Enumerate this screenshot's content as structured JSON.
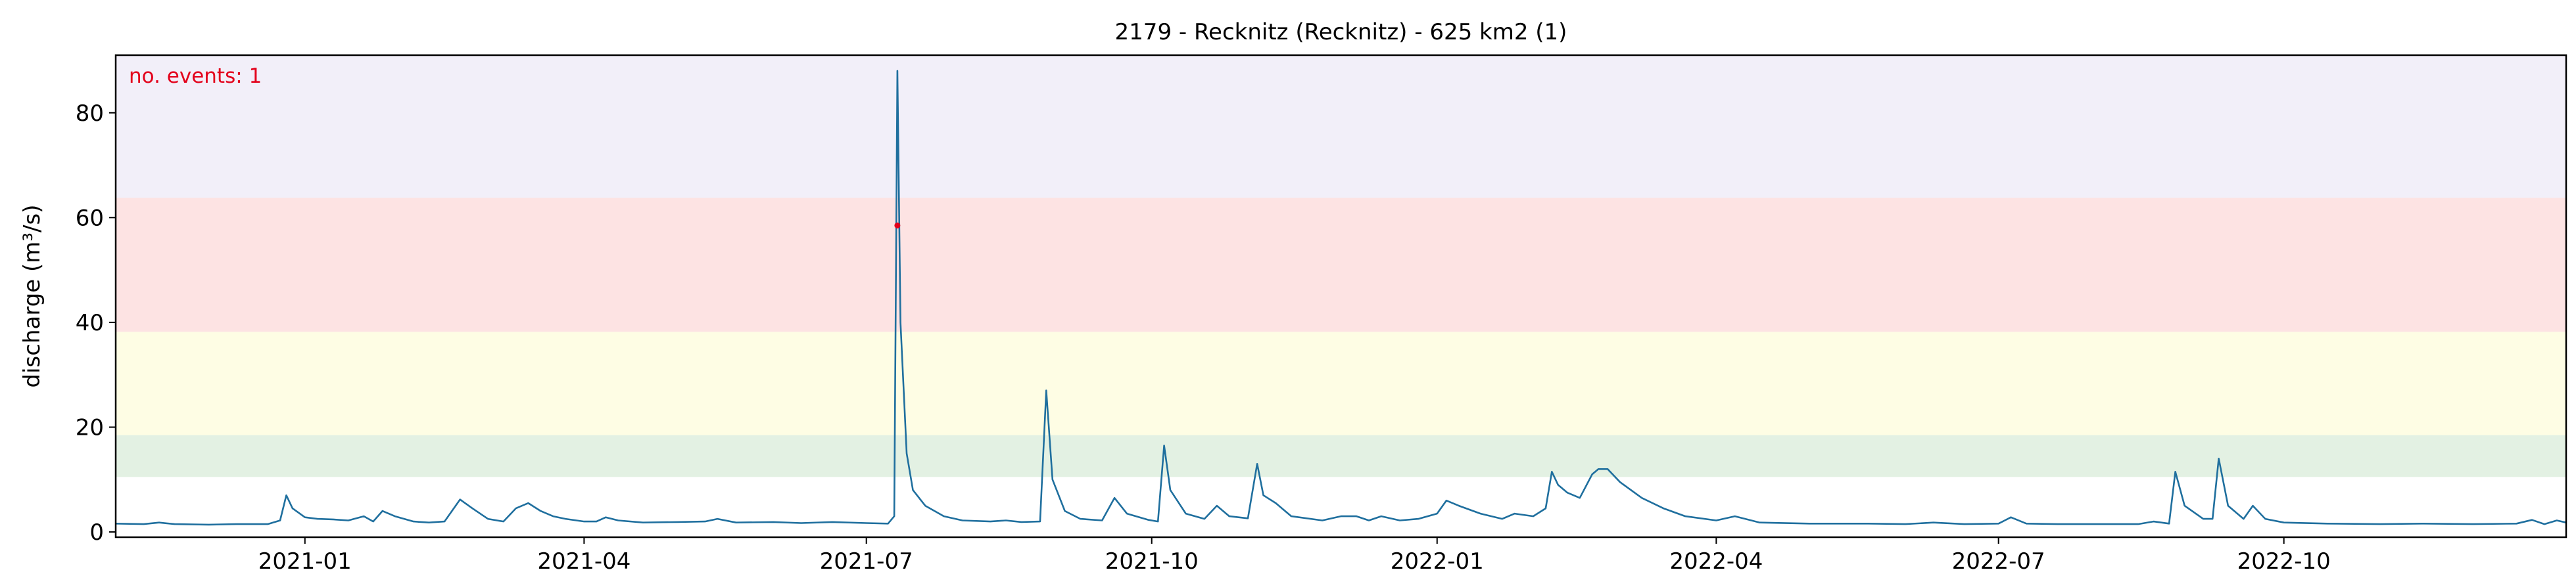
{
  "chart_data": {
    "type": "line",
    "title": "2179 - Recknitz (Recknitz) - 625 km2 (1)",
    "ylabel": "discharge (m³/s)",
    "xlabel": "",
    "xlim": [
      "2020-11-01",
      "2022-12-31"
    ],
    "ylim": [
      -1,
      91
    ],
    "yticks": [
      0,
      20,
      40,
      60,
      80
    ],
    "xticks": [
      "2021-01",
      "2021-04",
      "2021-07",
      "2021-10",
      "2022-01",
      "2022-04",
      "2022-07",
      "2022-10"
    ],
    "grid": false,
    "annotation": {
      "text": "no. events: 1",
      "color": "#e3001b"
    },
    "bands": [
      {
        "from": 10.5,
        "to": 18.5,
        "color": "#e3f1e3"
      },
      {
        "from": 18.5,
        "to": 38.2,
        "color": "#fefde4"
      },
      {
        "from": 38.2,
        "to": 63.8,
        "color": "#fde3e3"
      },
      {
        "from": 63.8,
        "to": 91,
        "color": "#f2eff9"
      }
    ],
    "series": [
      {
        "color": "#1f6f9e",
        "points": [
          [
            "2020-11-01",
            1.6
          ],
          [
            "2020-11-10",
            1.5
          ],
          [
            "2020-11-15",
            1.8
          ],
          [
            "2020-11-20",
            1.5
          ],
          [
            "2020-12-01",
            1.4
          ],
          [
            "2020-12-10",
            1.5
          ],
          [
            "2020-12-20",
            1.5
          ],
          [
            "2020-12-24",
            2.2
          ],
          [
            "2020-12-26",
            7.0
          ],
          [
            "2020-12-28",
            4.5
          ],
          [
            "2021-01-01",
            2.8
          ],
          [
            "2021-01-05",
            2.5
          ],
          [
            "2021-01-10",
            2.4
          ],
          [
            "2021-01-15",
            2.2
          ],
          [
            "2021-01-20",
            3.0
          ],
          [
            "2021-01-23",
            2.0
          ],
          [
            "2021-01-26",
            4.0
          ],
          [
            "2021-01-30",
            3.0
          ],
          [
            "2021-02-05",
            2.0
          ],
          [
            "2021-02-10",
            1.8
          ],
          [
            "2021-02-15",
            2.0
          ],
          [
            "2021-02-20",
            6.2
          ],
          [
            "2021-02-24",
            4.5
          ],
          [
            "2021-03-01",
            2.5
          ],
          [
            "2021-03-06",
            2.0
          ],
          [
            "2021-03-10",
            4.5
          ],
          [
            "2021-03-14",
            5.5
          ],
          [
            "2021-03-18",
            4.0
          ],
          [
            "2021-03-22",
            3.0
          ],
          [
            "2021-03-26",
            2.5
          ],
          [
            "2021-04-01",
            2.0
          ],
          [
            "2021-04-05",
            2.0
          ],
          [
            "2021-04-08",
            2.8
          ],
          [
            "2021-04-12",
            2.2
          ],
          [
            "2021-04-20",
            1.8
          ],
          [
            "2021-05-01",
            1.9
          ],
          [
            "2021-05-10",
            2.0
          ],
          [
            "2021-05-14",
            2.5
          ],
          [
            "2021-05-20",
            1.8
          ],
          [
            "2021-06-01",
            1.9
          ],
          [
            "2021-06-10",
            1.7
          ],
          [
            "2021-06-20",
            1.9
          ],
          [
            "2021-07-01",
            1.7
          ],
          [
            "2021-07-08",
            1.6
          ],
          [
            "2021-07-10",
            3.0
          ],
          [
            "2021-07-11",
            88.0
          ],
          [
            "2021-07-12",
            40.0
          ],
          [
            "2021-07-14",
            15.0
          ],
          [
            "2021-07-16",
            8.0
          ],
          [
            "2021-07-20",
            5.0
          ],
          [
            "2021-07-26",
            3.0
          ],
          [
            "2021-08-01",
            2.2
          ],
          [
            "2021-08-10",
            2.0
          ],
          [
            "2021-08-15",
            2.2
          ],
          [
            "2021-08-20",
            1.9
          ],
          [
            "2021-08-26",
            2.0
          ],
          [
            "2021-08-28",
            27.0
          ],
          [
            "2021-08-30",
            10.0
          ],
          [
            "2021-09-03",
            4.0
          ],
          [
            "2021-09-08",
            2.5
          ],
          [
            "2021-09-15",
            2.2
          ],
          [
            "2021-09-19",
            6.5
          ],
          [
            "2021-09-23",
            3.5
          ],
          [
            "2021-09-30",
            2.3
          ],
          [
            "2021-10-03",
            2.0
          ],
          [
            "2021-10-05",
            16.5
          ],
          [
            "2021-10-07",
            8.0
          ],
          [
            "2021-10-12",
            3.5
          ],
          [
            "2021-10-18",
            2.5
          ],
          [
            "2021-10-22",
            5.0
          ],
          [
            "2021-10-26",
            3.0
          ],
          [
            "2021-11-01",
            2.6
          ],
          [
            "2021-11-04",
            13.0
          ],
          [
            "2021-11-06",
            7.0
          ],
          [
            "2021-11-10",
            5.5
          ],
          [
            "2021-11-15",
            3.0
          ],
          [
            "2021-11-25",
            2.2
          ],
          [
            "2021-12-01",
            3.0
          ],
          [
            "2021-12-06",
            3.0
          ],
          [
            "2021-12-10",
            2.2
          ],
          [
            "2021-12-14",
            3.0
          ],
          [
            "2021-12-20",
            2.2
          ],
          [
            "2021-12-26",
            2.5
          ],
          [
            "2022-01-01",
            3.5
          ],
          [
            "2022-01-04",
            6.0
          ],
          [
            "2022-01-08",
            5.0
          ],
          [
            "2022-01-15",
            3.5
          ],
          [
            "2022-01-22",
            2.5
          ],
          [
            "2022-01-26",
            3.5
          ],
          [
            "2022-02-01",
            3.0
          ],
          [
            "2022-02-05",
            4.5
          ],
          [
            "2022-02-07",
            11.5
          ],
          [
            "2022-02-09",
            9.0
          ],
          [
            "2022-02-12",
            7.5
          ],
          [
            "2022-02-16",
            6.5
          ],
          [
            "2022-02-20",
            11.0
          ],
          [
            "2022-02-22",
            12.0
          ],
          [
            "2022-02-25",
            12.0
          ],
          [
            "2022-03-01",
            9.5
          ],
          [
            "2022-03-08",
            6.5
          ],
          [
            "2022-03-15",
            4.5
          ],
          [
            "2022-03-22",
            3.0
          ],
          [
            "2022-04-01",
            2.2
          ],
          [
            "2022-04-07",
            3.0
          ],
          [
            "2022-04-15",
            1.8
          ],
          [
            "2022-05-01",
            1.6
          ],
          [
            "2022-05-20",
            1.6
          ],
          [
            "2022-06-01",
            1.5
          ],
          [
            "2022-06-10",
            1.8
          ],
          [
            "2022-06-20",
            1.5
          ],
          [
            "2022-07-01",
            1.6
          ],
          [
            "2022-07-05",
            2.8
          ],
          [
            "2022-07-10",
            1.6
          ],
          [
            "2022-07-20",
            1.5
          ],
          [
            "2022-08-01",
            1.5
          ],
          [
            "2022-08-15",
            1.5
          ],
          [
            "2022-08-20",
            2.0
          ],
          [
            "2022-08-25",
            1.6
          ],
          [
            "2022-08-27",
            11.5
          ],
          [
            "2022-08-30",
            5.0
          ],
          [
            "2022-09-05",
            2.5
          ],
          [
            "2022-09-08",
            2.5
          ],
          [
            "2022-09-10",
            14.0
          ],
          [
            "2022-09-13",
            5.0
          ],
          [
            "2022-09-18",
            2.5
          ],
          [
            "2022-09-21",
            5.0
          ],
          [
            "2022-09-25",
            2.5
          ],
          [
            "2022-10-01",
            1.8
          ],
          [
            "2022-10-15",
            1.6
          ],
          [
            "2022-11-01",
            1.5
          ],
          [
            "2022-11-15",
            1.6
          ],
          [
            "2022-12-01",
            1.5
          ],
          [
            "2022-12-15",
            1.6
          ],
          [
            "2022-12-20",
            2.3
          ],
          [
            "2022-12-24",
            1.5
          ],
          [
            "2022-12-28",
            2.2
          ],
          [
            "2022-12-31",
            1.8
          ]
        ]
      }
    ],
    "event_markers": [
      {
        "x": "2021-07-11",
        "y": 58.5,
        "color": "#e3001b"
      }
    ]
  }
}
